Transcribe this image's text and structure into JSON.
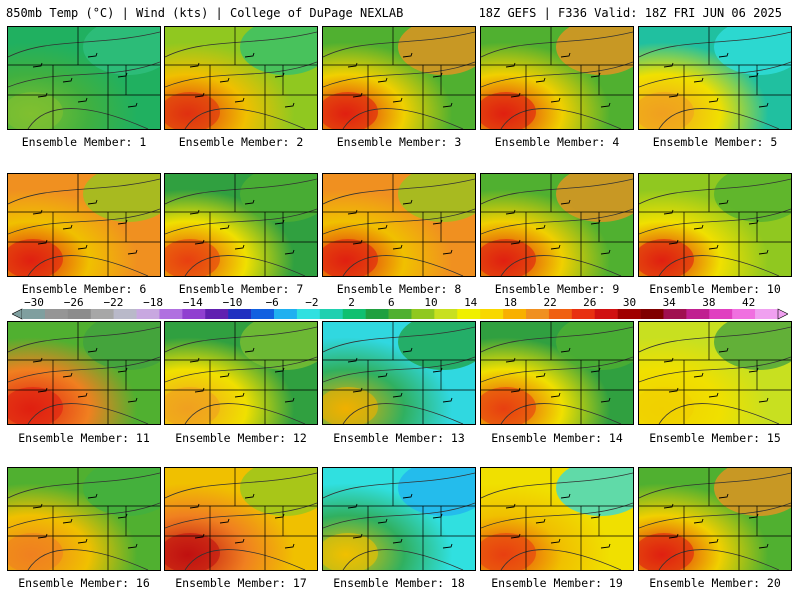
{
  "header": {
    "left": "850mb Temp (°C) | Wind (kts) | College of DuPage NEXLAB",
    "right": "18Z GEFS | F336 Valid: 18Z FRI JUN 06 2025"
  },
  "colorbar": {
    "labels": [
      "−30",
      "−26",
      "−22",
      "−18",
      "−14",
      "−10",
      "−6",
      "−2",
      "2",
      "6",
      "10",
      "14",
      "18",
      "22",
      "26",
      "30",
      "34",
      "38",
      "42"
    ],
    "colors": [
      "#7f9f9f",
      "#959595",
      "#8c8c8c",
      "#a7a7a7",
      "#b9b9c9",
      "#c8a8e0",
      "#b070e0",
      "#9040d0",
      "#6020b0",
      "#2030c0",
      "#1060e0",
      "#20b0f0",
      "#30e0e0",
      "#20d0b0",
      "#10c070",
      "#20a040",
      "#50b030",
      "#90c820",
      "#c8e020",
      "#f0f000",
      "#f8d800",
      "#f8b000",
      "#f09020",
      "#f06010",
      "#e83010",
      "#d01010",
      "#a00000",
      "#800000",
      "#a01050",
      "#c02090",
      "#e040c0",
      "#f070e0",
      "#f0a0f0"
    ],
    "icon": "horizontal-color-scale"
  },
  "members": [
    {
      "label": "Ensemble Member: 1",
      "scheme": "green"
    },
    {
      "label": "Ensemble Member: 2",
      "scheme": "mixed-hot-sw"
    },
    {
      "label": "Ensemble Member: 3",
      "scheme": "hot-sw-green-e"
    },
    {
      "label": "Ensemble Member: 4",
      "scheme": "hot-sw-green-e"
    },
    {
      "label": "Ensemble Member: 5",
      "scheme": "cool-n"
    },
    {
      "label": "Ensemble Member: 6",
      "scheme": "hot"
    },
    {
      "label": "Ensemble Member: 7",
      "scheme": "green-n-hot-s"
    },
    {
      "label": "Ensemble Member: 8",
      "scheme": "hot"
    },
    {
      "label": "Ensemble Member: 9",
      "scheme": "hot-sw-green-e"
    },
    {
      "label": "Ensemble Member: 10",
      "scheme": "yellow-hot-sw"
    },
    {
      "label": "Ensemble Member: 11",
      "scheme": "hot-w-green-e"
    },
    {
      "label": "Ensemble Member: 12",
      "scheme": "green-center"
    },
    {
      "label": "Ensemble Member: 13",
      "scheme": "cold-n"
    },
    {
      "label": "Ensemble Member: 14",
      "scheme": "green-n-hot-s"
    },
    {
      "label": "Ensemble Member: 15",
      "scheme": "yellow-green-e"
    },
    {
      "label": "Ensemble Member: 16",
      "scheme": "green-w-hot"
    },
    {
      "label": "Ensemble Member: 17",
      "scheme": "very-hot"
    },
    {
      "label": "Ensemble Member: 18",
      "scheme": "very-cold-n"
    },
    {
      "label": "Ensemble Member: 19",
      "scheme": "cold-ne"
    },
    {
      "label": "Ensemble Member: 20",
      "scheme": "hot-sw-green-e"
    }
  ]
}
